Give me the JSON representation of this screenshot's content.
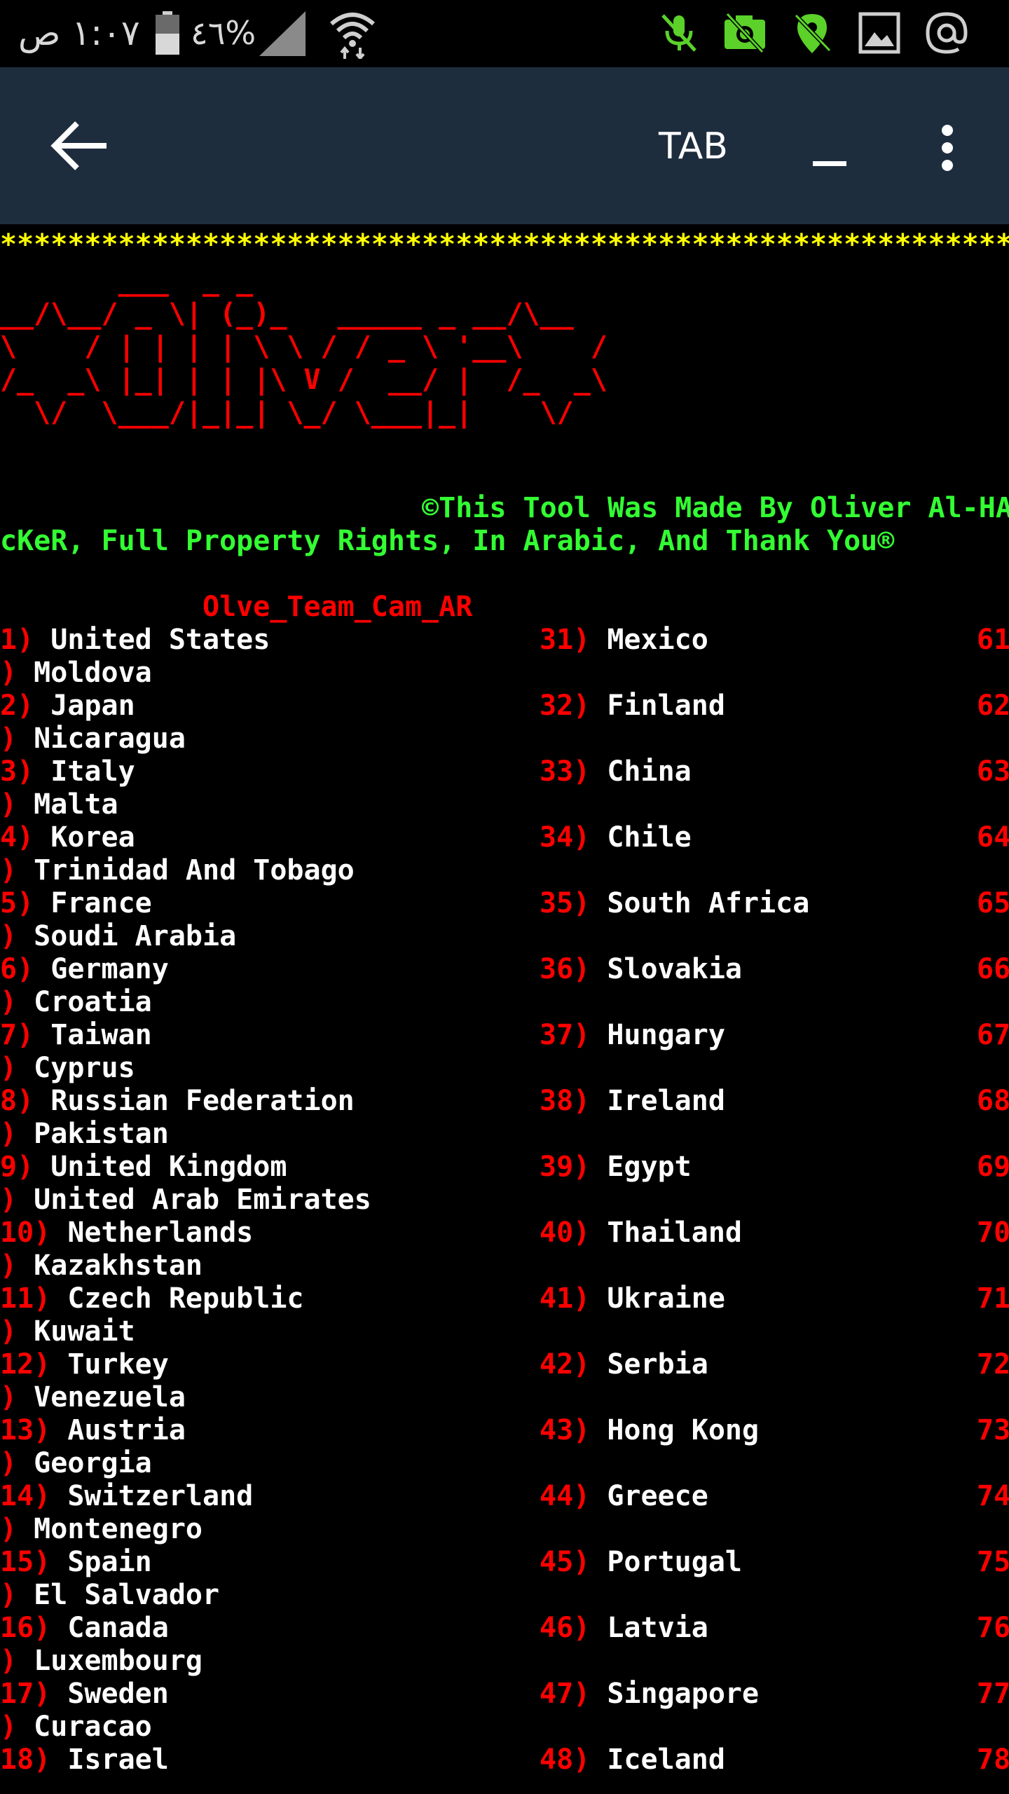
{
  "status_bar": {
    "time": "١:٠٧ ص",
    "battery_percent": "%٤٦",
    "icons": [
      "signal-icon",
      "wifi-icon",
      "mic-off-icon",
      "camera-off-icon",
      "location-off-icon",
      "image-icon",
      "at-icon"
    ],
    "accent_color": "#5bd12a"
  },
  "app_bar": {
    "title": "TAB",
    "back_icon": "arrow-left-icon",
    "minimize_label": "_",
    "menu_icon": "more-vert-icon"
  },
  "terminal": {
    "stars": "**************************************************************",
    "banner": "       ___  _ _\n__/\\__/ _ \\| (_)_   _____ _ __/\\__\n\\    / | | | | \\ \\ / / _ \\ '__\\    /\n/_  _\\ |_| | | |\\ V /  __/ |  /_  _\\\n  \\/  \\___/|_|_| \\_/ \\___|_|    \\/",
    "credit_line1": "                         ©This Tool Was Made By Oliver Al-HA",
    "credit_line2": "cKeR, Full Property Rights, In Arabic, And Thank You®",
    "team": "            Olve_Team_Cam_AR",
    "rows": [
      {
        "n1": "1)",
        "c1": "United States",
        "n2": "31)",
        "c2": "Mexico",
        "n3": "61",
        "wrap": ") Moldova"
      },
      {
        "n1": "2)",
        "c1": "Japan",
        "n2": "32)",
        "c2": "Finland",
        "n3": "62",
        "wrap": ") Nicaragua"
      },
      {
        "n1": "3)",
        "c1": "Italy",
        "n2": "33)",
        "c2": "China",
        "n3": "63",
        "wrap": ") Malta"
      },
      {
        "n1": "4)",
        "c1": "Korea",
        "n2": "34)",
        "c2": "Chile",
        "n3": "64",
        "wrap": ") Trinidad And Tobago"
      },
      {
        "n1": "5)",
        "c1": "France",
        "n2": "35)",
        "c2": "South Africa",
        "n3": "65",
        "wrap": ") Soudi Arabia"
      },
      {
        "n1": "6)",
        "c1": "Germany",
        "n2": "36)",
        "c2": "Slovakia",
        "n3": "66",
        "wrap": ") Croatia"
      },
      {
        "n1": "7)",
        "c1": "Taiwan",
        "n2": "37)",
        "c2": "Hungary",
        "n3": "67",
        "wrap": ") Cyprus"
      },
      {
        "n1": "8)",
        "c1": "Russian Federation",
        "n2": "38)",
        "c2": "Ireland",
        "n3": "68",
        "wrap": ") Pakistan"
      },
      {
        "n1": "9)",
        "c1": "United Kingdom",
        "n2": "39)",
        "c2": "Egypt",
        "n3": "69",
        "wrap": ") United Arab Emirates"
      },
      {
        "n1": "10)",
        "c1": "Netherlands",
        "n2": "40)",
        "c2": "Thailand",
        "n3": "70",
        "wrap": ") Kazakhstan"
      },
      {
        "n1": "11)",
        "c1": "Czech Republic",
        "n2": "41)",
        "c2": "Ukraine",
        "n3": "71",
        "wrap": ") Kuwait"
      },
      {
        "n1": "12)",
        "c1": "Turkey",
        "n2": "42)",
        "c2": "Serbia",
        "n3": "72",
        "wrap": ") Venezuela"
      },
      {
        "n1": "13)",
        "c1": "Austria",
        "n2": "43)",
        "c2": "Hong Kong",
        "n3": "73",
        "wrap": ") Georgia"
      },
      {
        "n1": "14)",
        "c1": "Switzerland",
        "n2": "44)",
        "c2": "Greece",
        "n3": "74",
        "wrap": ") Montenegro"
      },
      {
        "n1": "15)",
        "c1": "Spain",
        "n2": "45)",
        "c2": "Portugal",
        "n3": "75",
        "wrap": ") El Salvador"
      },
      {
        "n1": "16)",
        "c1": "Canada",
        "n2": "46)",
        "c2": "Latvia",
        "n3": "76",
        "wrap": ") Luxembourg"
      },
      {
        "n1": "17)",
        "c1": "Sweden",
        "n2": "47)",
        "c2": "Singapore",
        "n3": "77",
        "wrap": ") Curacao"
      },
      {
        "n1": "18)",
        "c1": "Israel",
        "n2": "48)",
        "c2": "Iceland",
        "n3": "78",
        "wrap": ""
      }
    ]
  }
}
